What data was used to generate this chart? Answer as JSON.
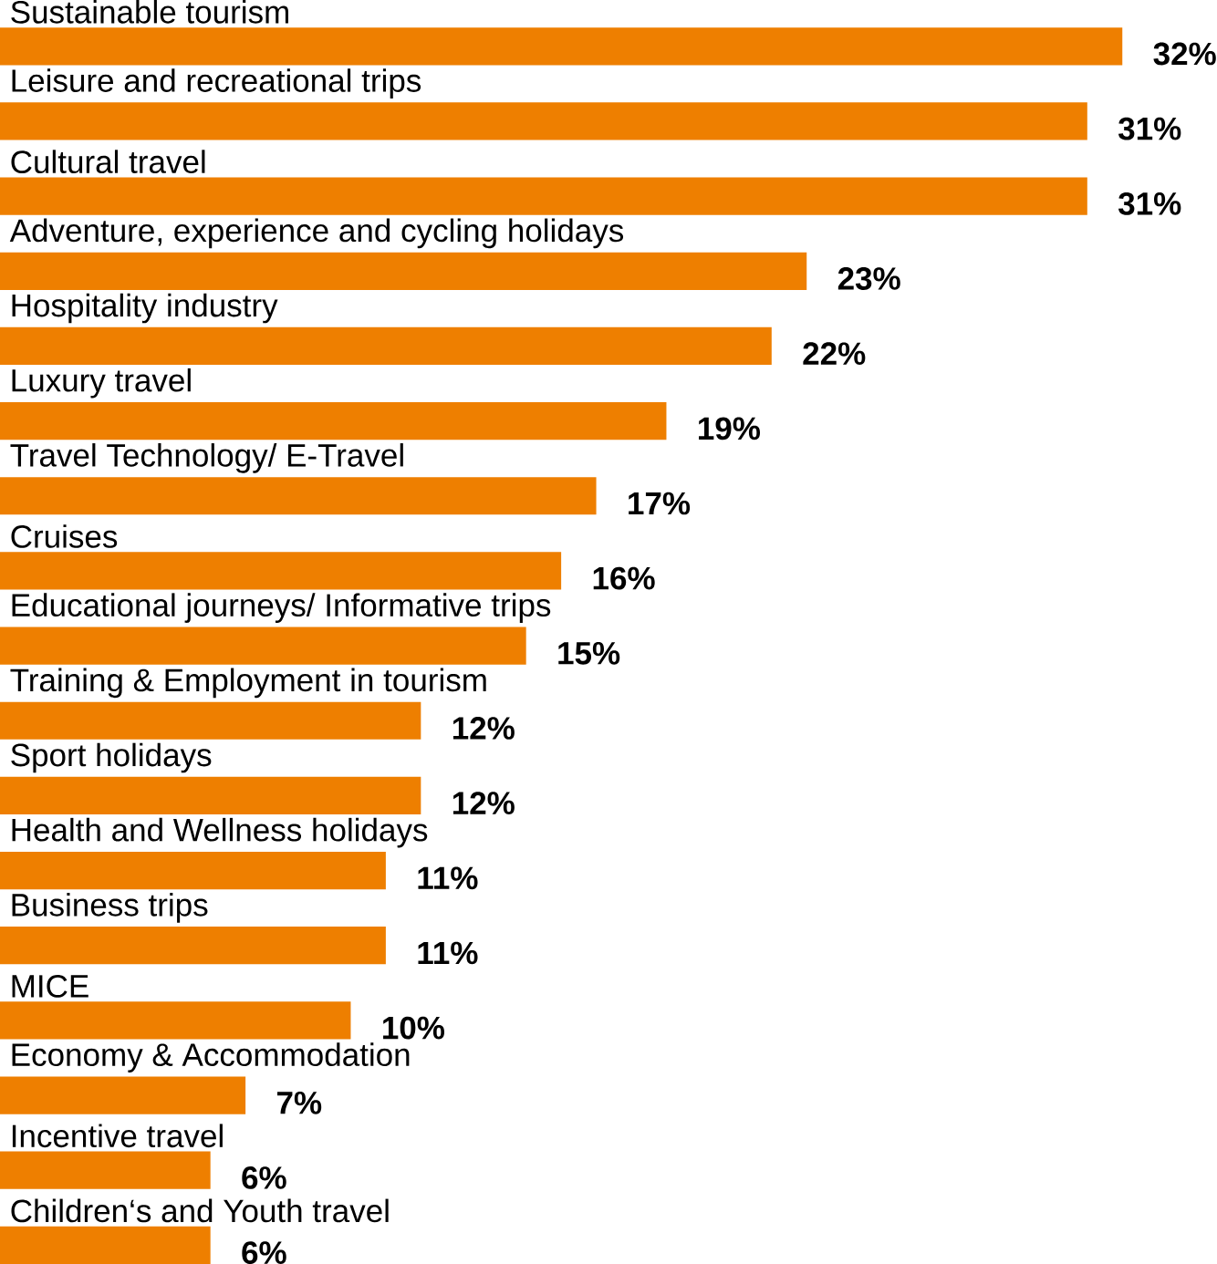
{
  "chart_data": {
    "type": "bar",
    "orientation": "horizontal",
    "categories": [
      "Sustainable tourism",
      "Leisure and recreational trips",
      "Cultural travel",
      "Adventure, experience and cycling holidays",
      "Hospitality industry",
      "Luxury travel",
      "Travel Technology/ E-Travel",
      "Cruises",
      "Educational journeys/ Informative trips",
      "Training & Employment in tourism",
      "Sport holidays",
      "Health and Wellness holidays",
      "Business trips",
      "MICE",
      "Economy & Accommodation",
      "Incentive travel",
      "Children‘s and Youth travel"
    ],
    "values": [
      32,
      31,
      31,
      23,
      22,
      19,
      17,
      16,
      15,
      12,
      12,
      11,
      11,
      10,
      7,
      6,
      6
    ],
    "value_labels": [
      "32%",
      "31%",
      "31%",
      "23%",
      "22%",
      "19%",
      "17%",
      "16%",
      "15%",
      "12%",
      "12%",
      "11%",
      "11%",
      "10%",
      "7%",
      "6%",
      "6%"
    ],
    "color": "#ee7f00"
  }
}
